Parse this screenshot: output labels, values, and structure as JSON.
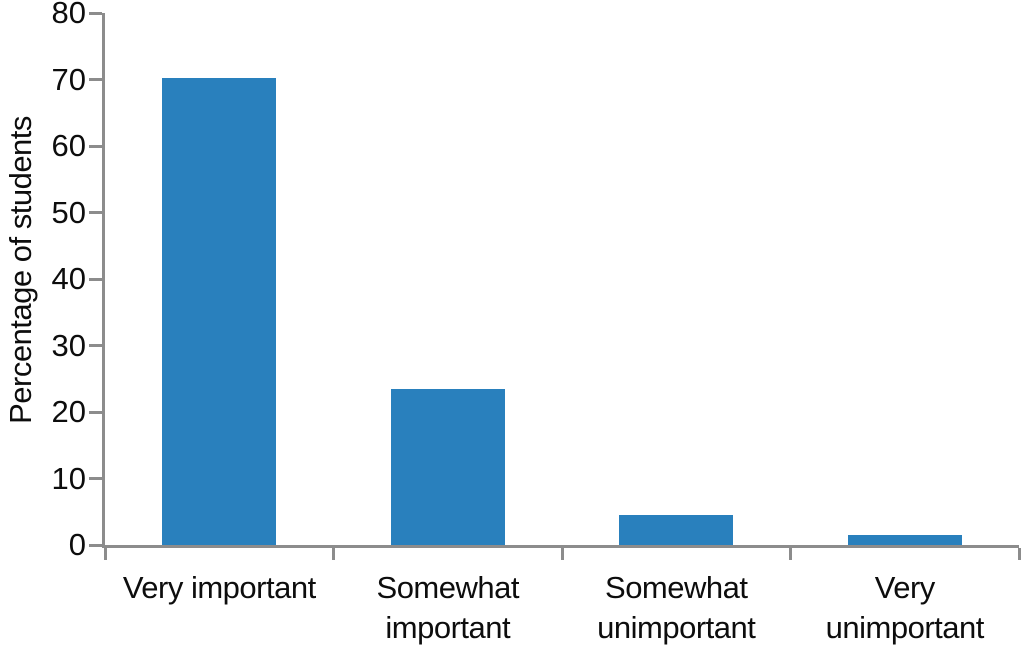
{
  "chart_data": {
    "type": "bar",
    "title": "",
    "xlabel": "",
    "ylabel": "Percentage of students",
    "categories": [
      "Very important",
      "Somewhat important",
      "Somewhat unimportant",
      "Very unimportant"
    ],
    "category_lines": [
      [
        "Very important"
      ],
      [
        "Somewhat",
        "important"
      ],
      [
        "Somewhat",
        "unimportant"
      ],
      [
        "Very",
        "unimportant"
      ]
    ],
    "values": [
      70.2,
      23.4,
      4.5,
      1.5
    ],
    "ylim": [
      0,
      80
    ],
    "yticks": [
      0,
      10,
      20,
      30,
      40,
      50,
      60,
      70,
      80
    ],
    "grid": false,
    "legend_position": "none",
    "bar_color": "#2980BD",
    "axis_color": "#8C8C8C",
    "text_color": "#0D0D0D"
  }
}
